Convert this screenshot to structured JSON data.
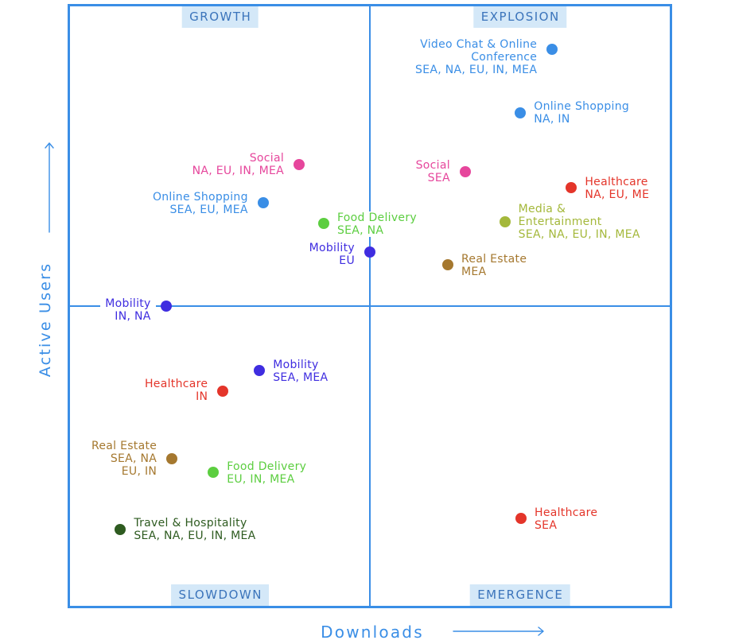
{
  "theme": {
    "accent": "#3a8ee6",
    "quadrant_label_bg": "#d4e8f8",
    "quadrant_label_text": "#3b74bb"
  },
  "icons": {
    "y_axis_arrow": "arrow-up-icon",
    "x_axis_arrow": "arrow-right-icon"
  },
  "chart_data": {
    "type": "scatter",
    "xlabel": "Downloads",
    "ylabel": "Active Users",
    "xlim": [
      0,
      100
    ],
    "ylim": [
      0,
      100
    ],
    "quadrants": {
      "top_left": "GROWTH",
      "top_right": "EXPLOSION",
      "bottom_left": "SLOWDOWN",
      "bottom_right": "EMERGENCE"
    },
    "points": [
      {
        "sector": [
          "Video Chat & Online",
          "Conference"
        ],
        "regions": [
          "SEA, NA, EU, IN, MEA"
        ],
        "x": 80.4,
        "y": 92.8,
        "color": "#3a8ee6"
      },
      {
        "sector": [
          "Online Shopping"
        ],
        "regions": [
          "NA, IN"
        ],
        "x": 75.1,
        "y": 82.2,
        "color": "#3a8ee6"
      },
      {
        "sector": [
          "Social"
        ],
        "regions": [
          "SEA"
        ],
        "x": 65.9,
        "y": 72.4,
        "color": "#e6469c"
      },
      {
        "sector": [
          "Healthcare"
        ],
        "regions": [
          "NA, EU, ME"
        ],
        "x": 83.6,
        "y": 69.8,
        "color": "#e4352a"
      },
      {
        "sector": [
          "Media &",
          "Entertainment"
        ],
        "regions": [
          "SEA, NA, EU, IN, MEA"
        ],
        "x": 72.5,
        "y": 64.1,
        "color": "#a4b83b"
      },
      {
        "sector": [
          "Real Estate"
        ],
        "regions": [
          "MEA"
        ],
        "x": 63.0,
        "y": 56.9,
        "color": "#a5782f"
      },
      {
        "sector": [
          "Social"
        ],
        "regions": [
          "NA, EU, IN, MEA"
        ],
        "x": 38.2,
        "y": 73.6,
        "color": "#e6469c"
      },
      {
        "sector": [
          "Online Shopping"
        ],
        "regions": [
          "SEA, EU, MEA"
        ],
        "x": 32.2,
        "y": 67.2,
        "color": "#3a8ee6"
      },
      {
        "sector": [
          "Food Delivery"
        ],
        "regions": [
          "SEA, NA"
        ],
        "x": 42.3,
        "y": 63.8,
        "color": "#5cce40"
      },
      {
        "sector": [
          "Mobility"
        ],
        "regions": [
          "EU"
        ],
        "x": 50.0,
        "y": 59.0,
        "color": "#3f2de0"
      },
      {
        "sector": [
          "Mobility"
        ],
        "regions": [
          "IN, NA"
        ],
        "x": 16.0,
        "y": 50.0,
        "color": "#3f2de0"
      },
      {
        "sector": [
          "Mobility"
        ],
        "regions": [
          "SEA, MEA"
        ],
        "x": 31.6,
        "y": 39.3,
        "color": "#3f2de0"
      },
      {
        "sector": [
          "Healthcare"
        ],
        "regions": [
          "IN"
        ],
        "x": 25.5,
        "y": 35.8,
        "color": "#e4352a"
      },
      {
        "sector": [
          "Real Estate"
        ],
        "regions": [
          "SEA, NA",
          "EU, IN"
        ],
        "x": 17.0,
        "y": 24.5,
        "color": "#a5782f"
      },
      {
        "sector": [
          "Food Delivery"
        ],
        "regions": [
          "EU, IN, MEA"
        ],
        "x": 23.9,
        "y": 22.3,
        "color": "#5cce40"
      },
      {
        "sector": [
          "Travel & Hospitality"
        ],
        "regions": [
          "SEA, NA, EU, IN, MEA"
        ],
        "x": 8.4,
        "y": 12.7,
        "color": "#2e5b20"
      },
      {
        "sector": [
          "Healthcare"
        ],
        "regions": [
          "SEA"
        ],
        "x": 75.2,
        "y": 14.6,
        "color": "#e4352a"
      }
    ]
  }
}
